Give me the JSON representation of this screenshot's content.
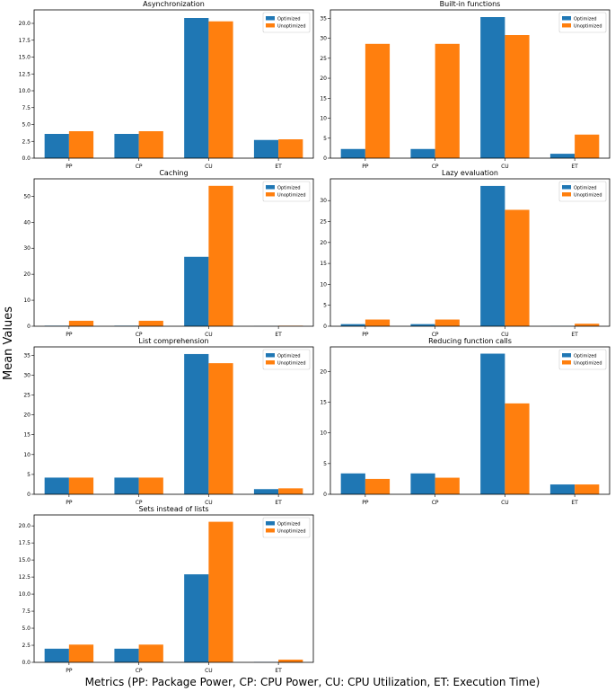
{
  "figure": {
    "ylabel": "Mean Values",
    "xlabel": "Metrics (PP: Package Power, CP: CPU Power, CU: CPU Utilization, ET: Execution Time)"
  },
  "colors": {
    "optimized": "#1f77b4",
    "unoptimized": "#ff7f0e"
  },
  "chart_data": [
    {
      "type": "bar",
      "title": "Asynchronization",
      "categories": [
        "PP",
        "CP",
        "CU",
        "ET"
      ],
      "series": [
        {
          "name": "Optimized",
          "values": [
            3.6,
            3.6,
            20.8,
            2.7
          ]
        },
        {
          "name": "Unoptimized",
          "values": [
            4.0,
            4.0,
            20.3,
            2.8
          ]
        }
      ],
      "ylim": [
        0,
        22.0
      ],
      "yticks": [
        "0.0",
        "2.5",
        "5.0",
        "7.5",
        "10.0",
        "12.5",
        "15.0",
        "17.5",
        "20.0"
      ],
      "legend": "top-right"
    },
    {
      "type": "bar",
      "title": "Built-in functions",
      "categories": [
        "PP",
        "CP",
        "CU",
        "ET"
      ],
      "series": [
        {
          "name": "Optimized",
          "values": [
            2.3,
            2.3,
            35.3,
            1.1
          ]
        },
        {
          "name": "Unoptimized",
          "values": [
            28.6,
            28.6,
            30.8,
            5.9
          ]
        }
      ],
      "ylim": [
        0,
        37.1
      ],
      "yticks": [
        "0",
        "5",
        "10",
        "15",
        "20",
        "25",
        "30",
        "35"
      ],
      "legend": "top-right"
    },
    {
      "type": "bar",
      "title": "Caching",
      "categories": [
        "PP",
        "CP",
        "CU",
        "ET"
      ],
      "series": [
        {
          "name": "Optimized",
          "values": [
            0.2,
            0.2,
            26.7,
            0.05
          ]
        },
        {
          "name": "Unoptimized",
          "values": [
            2.1,
            2.1,
            54.0,
            0.2
          ]
        }
      ],
      "ylim": [
        0,
        56.7
      ],
      "yticks": [
        "0",
        "10",
        "20",
        "30",
        "40",
        "50"
      ],
      "legend": "top-right"
    },
    {
      "type": "bar",
      "title": "Lazy evaluation",
      "categories": [
        "PP",
        "CP",
        "CU",
        "ET"
      ],
      "series": [
        {
          "name": "Optimized",
          "values": [
            0.5,
            0.5,
            33.5,
            0.05
          ]
        },
        {
          "name": "Unoptimized",
          "values": [
            1.6,
            1.6,
            27.8,
            0.6
          ]
        }
      ],
      "ylim": [
        0,
        35.2
      ],
      "yticks": [
        "0",
        "5",
        "10",
        "15",
        "20",
        "25",
        "30"
      ],
      "legend": "top-right"
    },
    {
      "type": "bar",
      "title": "List comprehension",
      "categories": [
        "PP",
        "CP",
        "CU",
        "ET"
      ],
      "series": [
        {
          "name": "Optimized",
          "values": [
            4.2,
            4.2,
            35.3,
            1.3
          ]
        },
        {
          "name": "Unoptimized",
          "values": [
            4.2,
            4.2,
            33.0,
            1.5
          ]
        }
      ],
      "ylim": [
        0,
        37.1
      ],
      "yticks": [
        "0",
        "5",
        "10",
        "15",
        "20",
        "25",
        "30",
        "35"
      ],
      "legend": "top-right"
    },
    {
      "type": "bar",
      "title": "Reducing function calls",
      "categories": [
        "PP",
        "CP",
        "CU",
        "ET"
      ],
      "series": [
        {
          "name": "Optimized",
          "values": [
            3.4,
            3.4,
            22.9,
            1.6
          ]
        },
        {
          "name": "Unoptimized",
          "values": [
            2.5,
            2.7,
            14.8,
            1.6
          ]
        }
      ],
      "ylim": [
        0,
        24.0
      ],
      "yticks": [
        "0",
        "5",
        "10",
        "15",
        "20"
      ],
      "legend": "top-right"
    },
    {
      "type": "bar",
      "title": "Sets instead of lists",
      "categories": [
        "PP",
        "CP",
        "CU",
        "ET"
      ],
      "series": [
        {
          "name": "Optimized",
          "values": [
            2.0,
            2.0,
            12.9,
            0.05
          ]
        },
        {
          "name": "Unoptimized",
          "values": [
            2.6,
            2.6,
            20.6,
            0.4
          ]
        }
      ],
      "ylim": [
        0,
        21.6
      ],
      "yticks": [
        "0.0",
        "2.5",
        "5.0",
        "7.5",
        "10.0",
        "12.5",
        "15.0",
        "17.5",
        "20.0"
      ],
      "legend": "top-right"
    }
  ]
}
